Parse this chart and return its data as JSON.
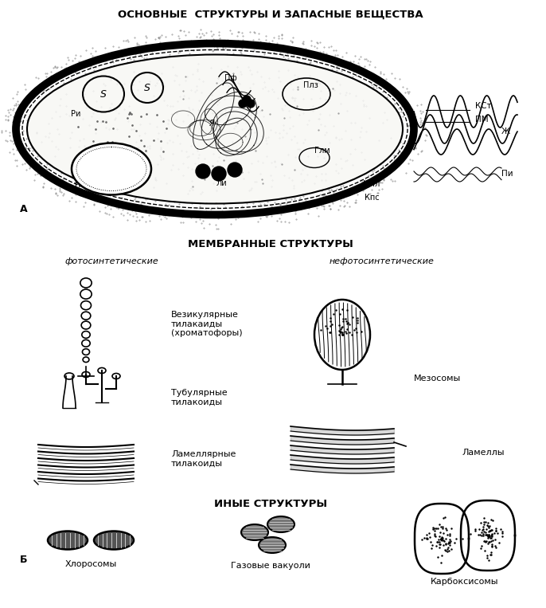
{
  "title_top": "ОСНОВНЫЕ  СТРУКТУРЫ И ЗАПАСНЫЕ ВЕЩЕСТВА",
  "title_membrane": "МЕМБРАННЫЕ СТРУКТУРЫ",
  "title_other": "ИНЫЕ СТРУКТУРЫ",
  "label_photosynthetic": "фотосинтетические",
  "label_non_photosynthetic": "нефотосинтетические",
  "label_vesicular": "Везикулярные\nтилакаиды\n(хроматофоры)",
  "label_tubular": "Тубулярные\nтилакоиды",
  "label_lamellar": "Ламеллярные\nтилакоиды",
  "label_mesosomes": "Мезосомы",
  "label_lamellae": "Ламеллы",
  "label_chlorosomes": "Хлоросомы",
  "label_gas_vacuoles": "Газовые вакуоли",
  "label_carboxysomes": "Карбоксисомы",
  "bg_color": "#ffffff",
  "line_color": "#000000",
  "text_color": "#000000"
}
